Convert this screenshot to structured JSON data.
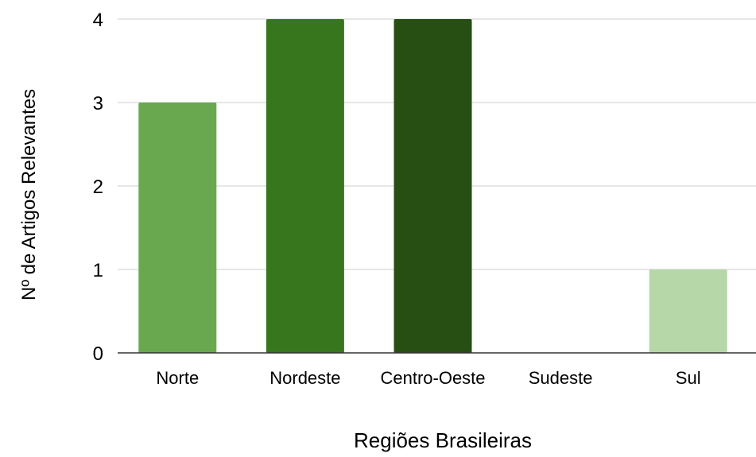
{
  "chart_data": {
    "type": "bar",
    "categories": [
      "Norte",
      "Nordeste",
      "Centro-Oeste",
      "Sudeste",
      "Sul"
    ],
    "values": [
      3,
      4,
      4,
      0,
      1
    ],
    "bar_colors": [
      "#6aa84f",
      "#38761d",
      "#274e13",
      "#6aa84f",
      "#b6d7a8"
    ],
    "xlabel": "Regiões Brasileiras",
    "ylabel": "Nº de Artigos Relevantes",
    "ylim": [
      0,
      4
    ],
    "yticks": [
      "0",
      "1",
      "2",
      "3",
      "4"
    ],
    "grid": true,
    "gridline_color": "#cccccc",
    "axis_color": "#333333"
  }
}
